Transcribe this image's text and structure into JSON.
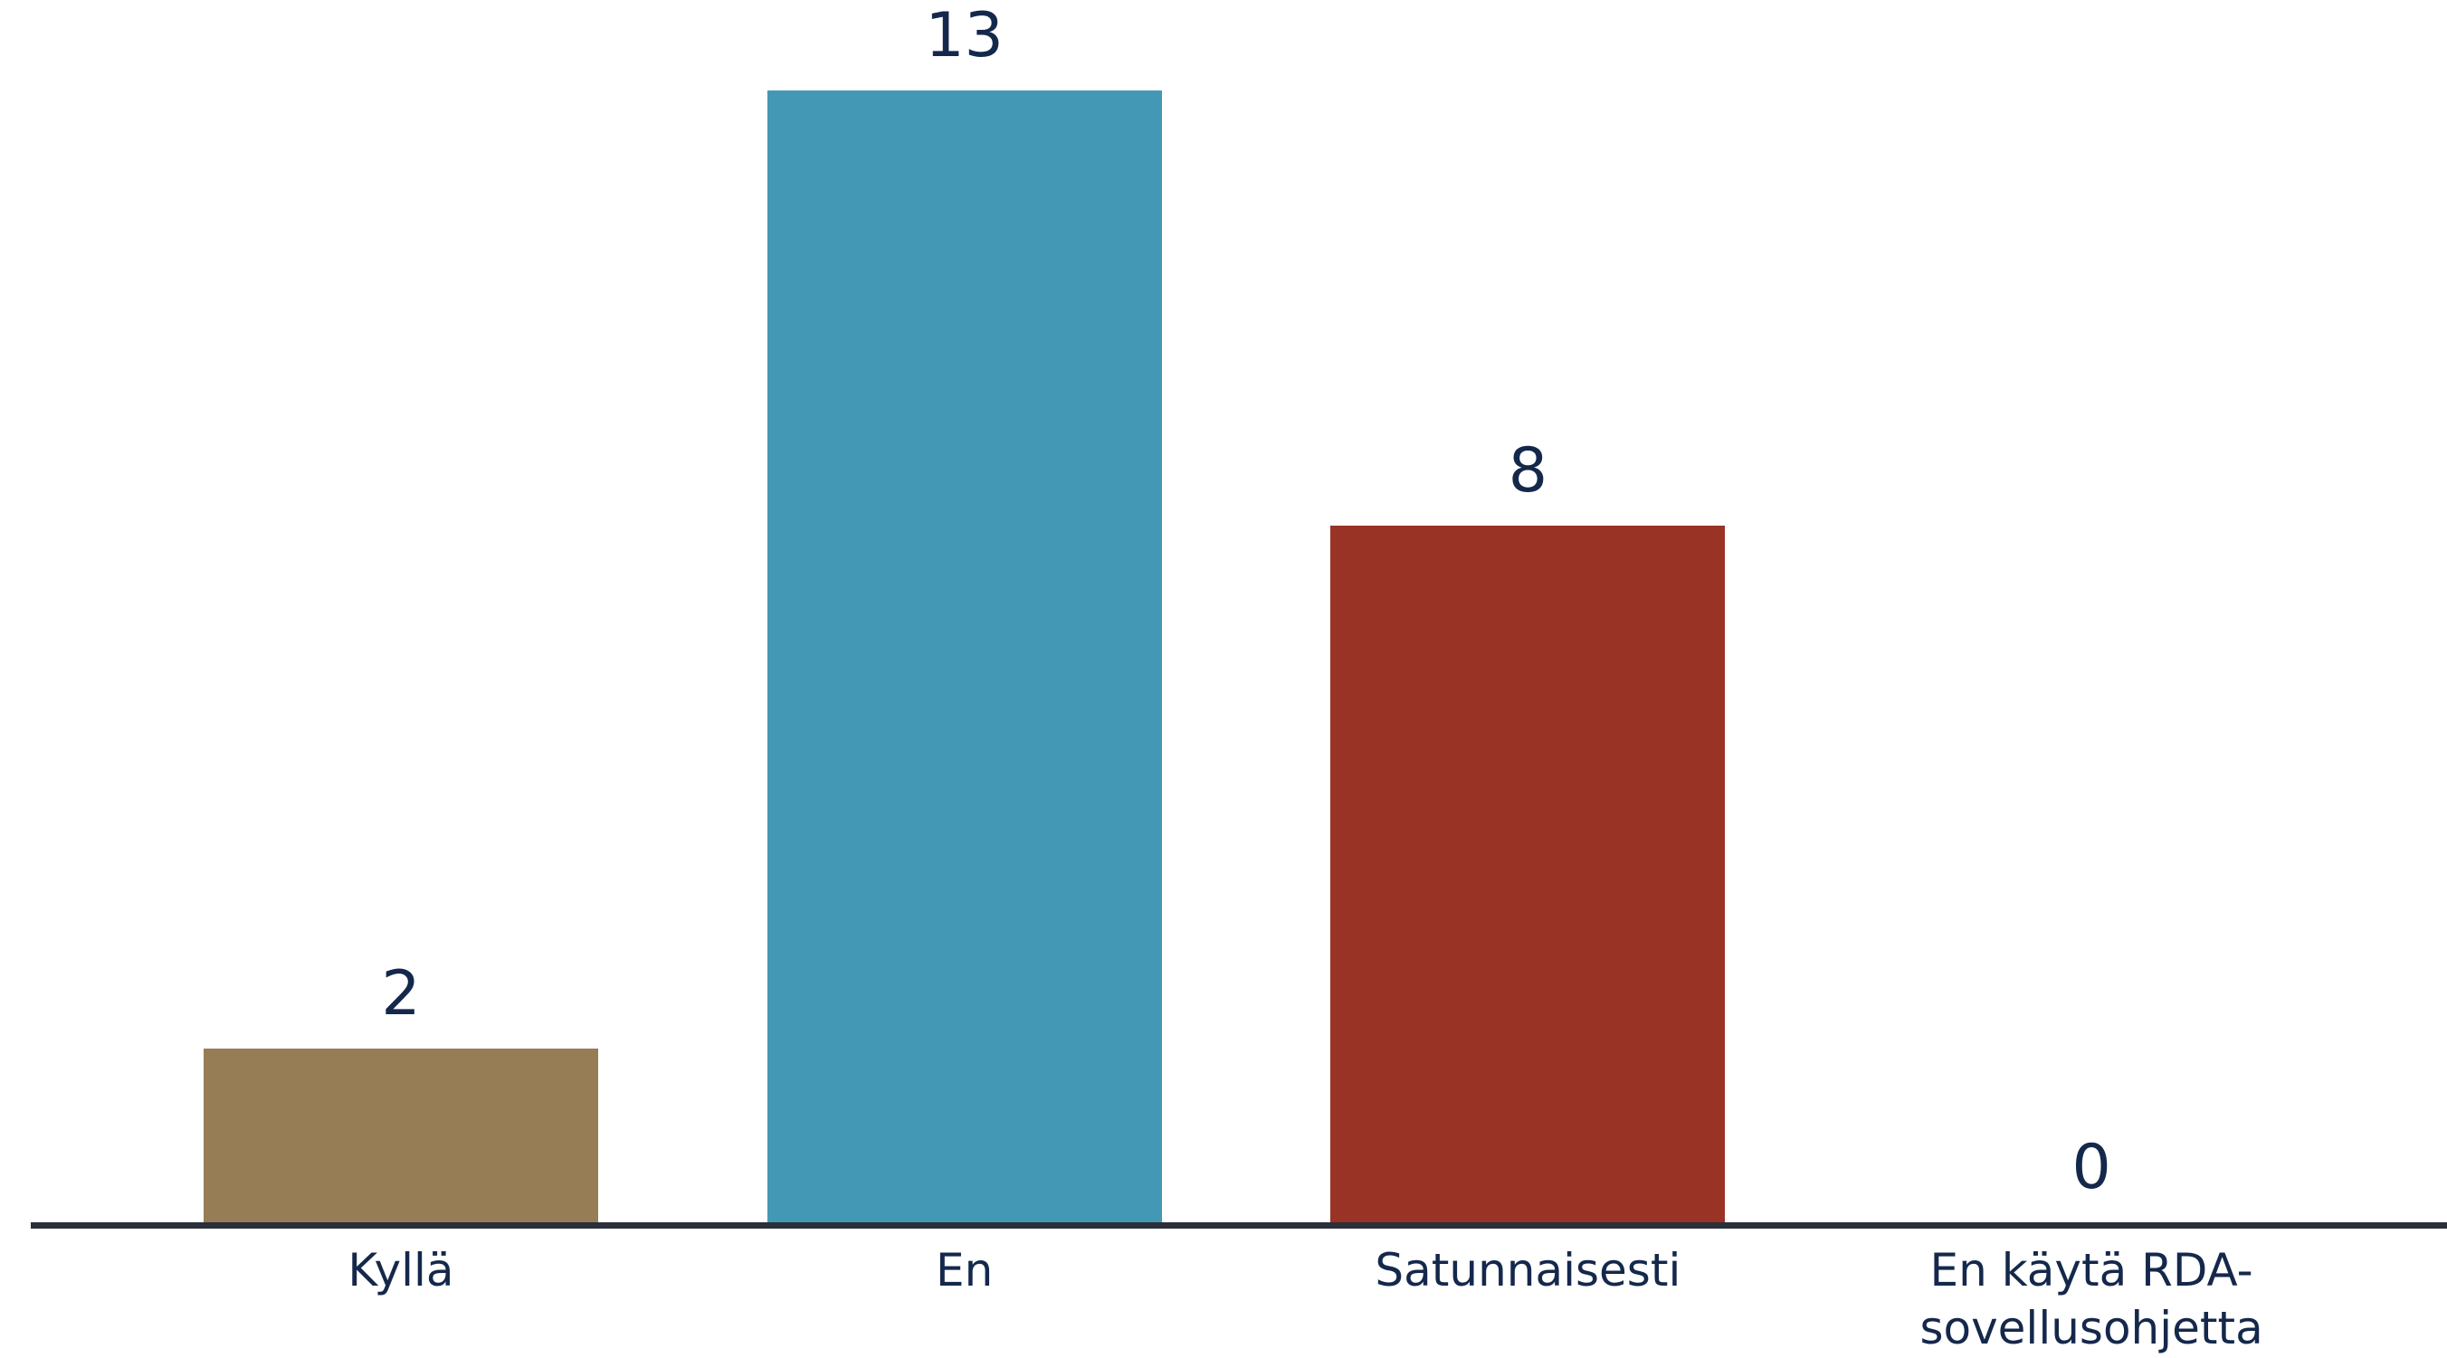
{
  "chart_data": {
    "type": "bar",
    "categories": [
      "Kyllä",
      "En",
      "Satunnaisesti",
      "En käytä RDA-sovellusohjetta"
    ],
    "values": [
      2,
      13,
      8,
      0
    ],
    "colors": [
      "#967d55",
      "#4398b5",
      "#993326",
      "#4398b5"
    ],
    "ylim": [
      0,
      13
    ]
  }
}
